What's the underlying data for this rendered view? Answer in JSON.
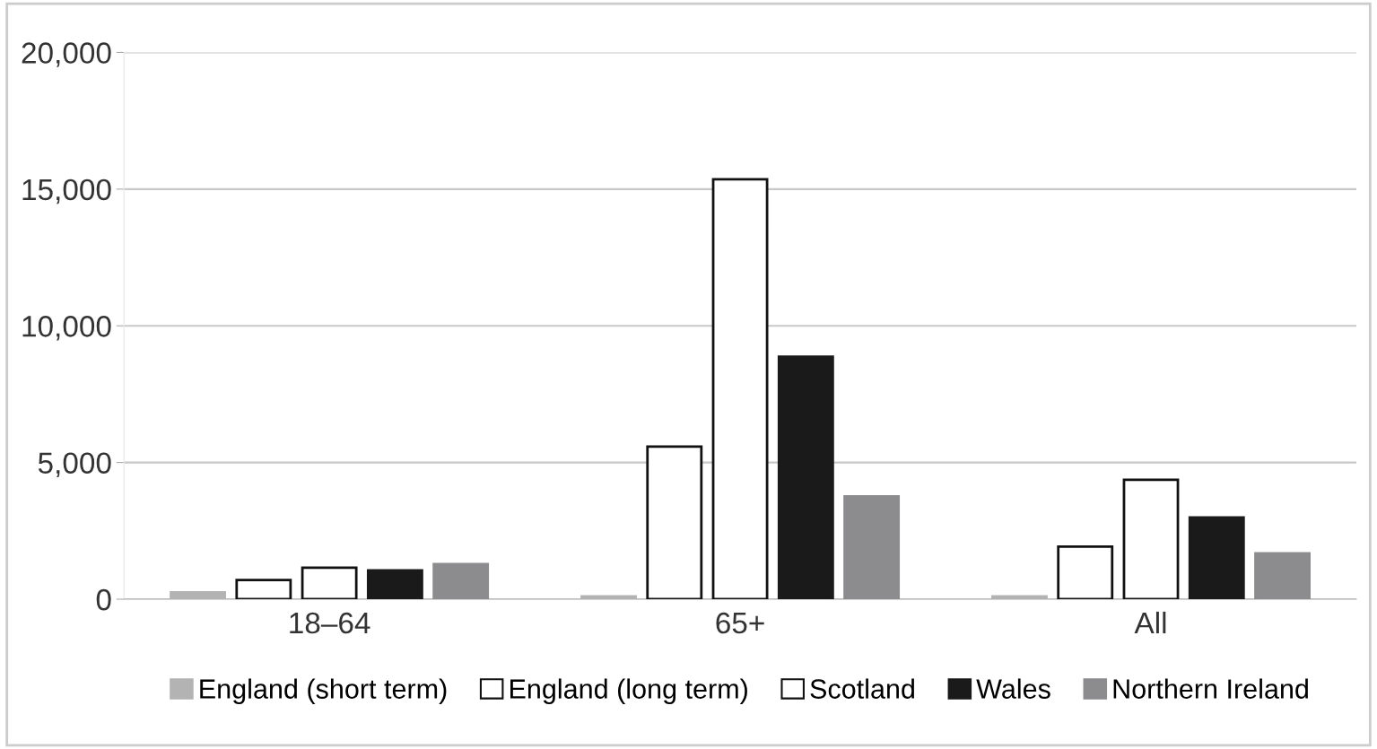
{
  "chart_data": {
    "type": "bar",
    "categories": [
      "18–64",
      "65+",
      "All"
    ],
    "series": [
      {
        "name": "England (short term)",
        "color": "#b3b3b3",
        "values": [
          250,
          100,
          100
        ]
      },
      {
        "name": "England (long term)",
        "color": "#ffffff",
        "values": [
          700,
          5580,
          1920
        ]
      },
      {
        "name": "Scotland",
        "color": "#ffffff",
        "values": [
          1150,
          15360,
          4370
        ]
      },
      {
        "name": "Wales",
        "color": "#1a1a1a",
        "values": [
          1050,
          8870,
          2990
        ]
      },
      {
        "name": "Northern Ireland",
        "color": "#8c8c8e",
        "values": [
          1280,
          3760,
          1680
        ]
      }
    ],
    "ylim": [
      0,
      20000
    ],
    "yticks": [
      0,
      {
        "value": 5000,
        "label": "5,000"
      },
      {
        "value": 10000,
        "label": "10,000"
      },
      {
        "value": 15000,
        "label": "15,000"
      },
      {
        "value": 20000,
        "label": "20,000"
      }
    ],
    "grid": "y",
    "legend": "bottom"
  }
}
